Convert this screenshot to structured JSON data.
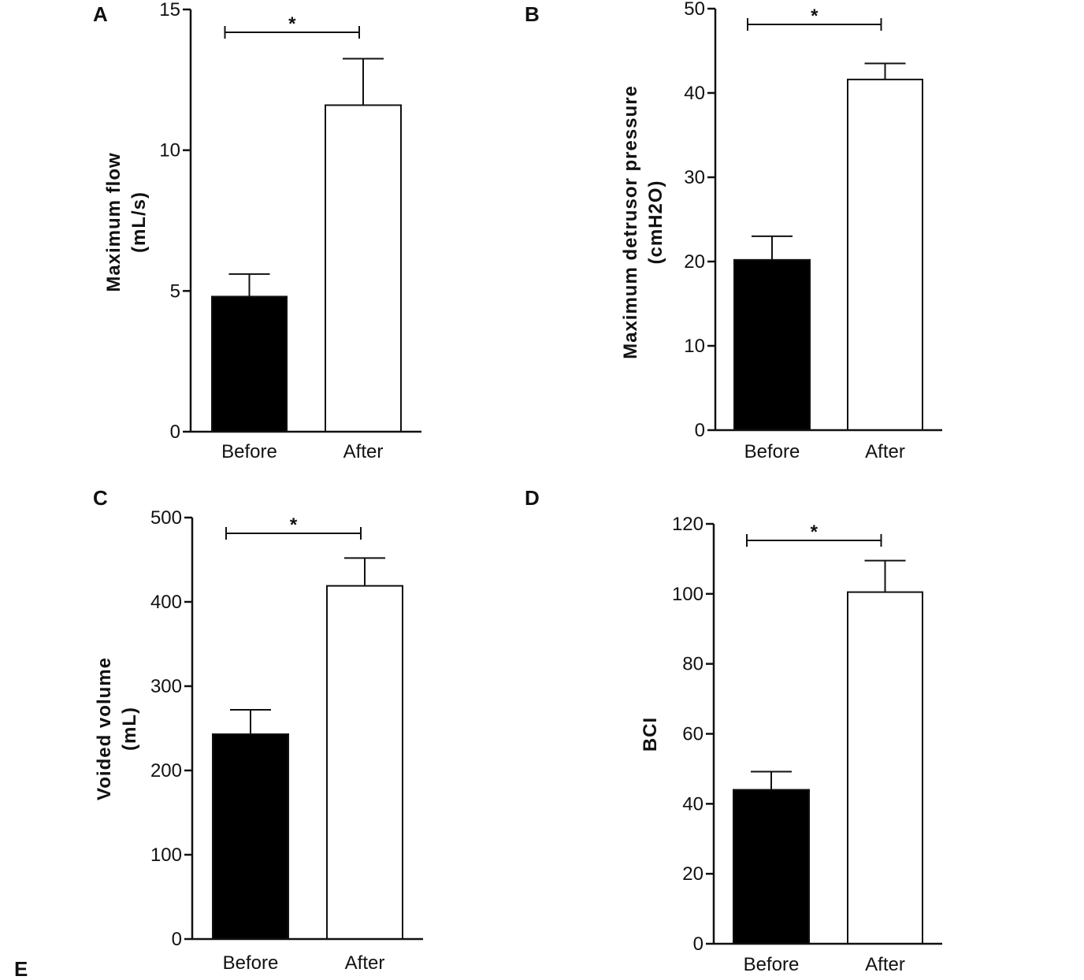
{
  "figure": {
    "extra_label": "E",
    "colors": {
      "before": "#000000",
      "after": "#ffffff",
      "stroke": "#111111"
    }
  },
  "chart_data": [
    {
      "panel": "A",
      "type": "bar",
      "categories": [
        "Before",
        "After"
      ],
      "values": [
        4.8,
        11.6
      ],
      "errors": [
        0.8,
        1.65
      ],
      "ylabel_lines": [
        "Maximum flow",
        "(mL/s)"
      ],
      "ylim": [
        0,
        15
      ],
      "yticks": [
        0,
        5,
        10,
        15
      ],
      "significance": {
        "between": [
          0,
          1
        ],
        "marker": "*"
      }
    },
    {
      "panel": "B",
      "type": "bar",
      "categories": [
        "Before",
        "After"
      ],
      "values": [
        20.2,
        41.6
      ],
      "errors": [
        2.8,
        1.9
      ],
      "ylabel_lines": [
        "Maximum detrusor pressure",
        "(cmH2O)"
      ],
      "ylim": [
        0,
        50
      ],
      "yticks": [
        0,
        10,
        20,
        30,
        40,
        50
      ],
      "significance": {
        "between": [
          0,
          1
        ],
        "marker": "*"
      }
    },
    {
      "panel": "C",
      "type": "bar",
      "categories": [
        "Before",
        "After"
      ],
      "values": [
        243,
        419
      ],
      "errors": [
        29,
        33
      ],
      "ylabel_lines": [
        "Voided volume",
        "(mL)"
      ],
      "ylim": [
        0,
        500
      ],
      "yticks": [
        0,
        100,
        200,
        300,
        400,
        500
      ],
      "significance": {
        "between": [
          0,
          1
        ],
        "marker": "*"
      }
    },
    {
      "panel": "D",
      "type": "bar",
      "categories": [
        "Before",
        "After"
      ],
      "values": [
        44,
        100.5
      ],
      "errors": [
        5.2,
        9
      ],
      "ylabel_lines": [
        "BCI"
      ],
      "ylim": [
        0,
        120
      ],
      "yticks": [
        0,
        20,
        40,
        60,
        80,
        100,
        120
      ],
      "significance": {
        "between": [
          0,
          1
        ],
        "marker": "*"
      }
    }
  ]
}
